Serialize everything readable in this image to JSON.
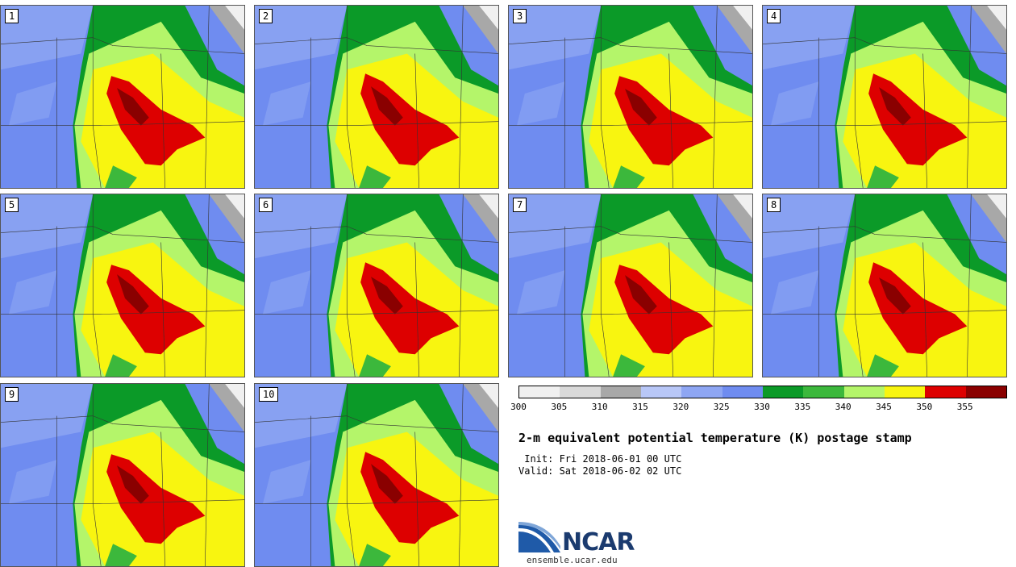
{
  "panels": [
    {
      "label": "1"
    },
    {
      "label": "2"
    },
    {
      "label": "3"
    },
    {
      "label": "4"
    },
    {
      "label": "5"
    },
    {
      "label": "6"
    },
    {
      "label": "7"
    },
    {
      "label": "8"
    },
    {
      "label": "9"
    },
    {
      "label": "10"
    }
  ],
  "colorbar": {
    "colors": [
      "#f0f0f0",
      "#d9d9d9",
      "#a8a8a8",
      "#b8c7f7",
      "#8ea6f3",
      "#6f8cf0",
      "#0b9a28",
      "#3cb83c",
      "#b4f56a",
      "#f8f510",
      "#dd0000",
      "#8a0000"
    ],
    "ticks": [
      "300",
      "305",
      "310",
      "315",
      "320",
      "325",
      "330",
      "335",
      "340",
      "345",
      "350",
      "355"
    ]
  },
  "title": "2-m equivalent potential temperature (K) postage stamp",
  "init": " Init: Fri 2018-06-01 00 UTC",
  "valid": "Valid: Sat 2018-06-02 02 UTC",
  "logo": {
    "text": "NCAR",
    "site": "ensemble.ucar.edu"
  }
}
